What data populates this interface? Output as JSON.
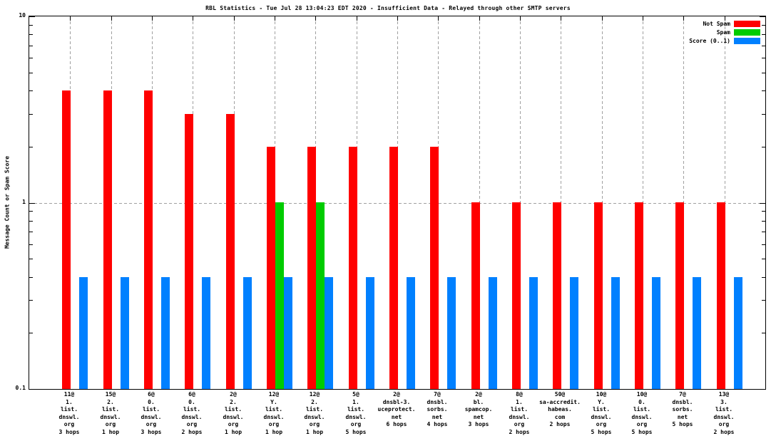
{
  "chart_data": {
    "type": "bar",
    "title": "RBL Statistics - Tue Jul 28 13:04:23 EDT 2020 - Insufficient Data - Relayed through other SMTP servers",
    "ylabel": "Message Count or Spam Score",
    "xlabel": "",
    "y_scale": "log",
    "ylim": [
      0.1,
      10
    ],
    "grid": {
      "horizontal_dashed_at": [
        1
      ],
      "vertical_dashed_at_categories": true
    },
    "legend_position": "top-right",
    "y_major_ticks": [
      {
        "value": 10,
        "label": "10"
      },
      {
        "value": 1,
        "label": "1"
      },
      {
        "value": 0.1,
        "label": "0.1"
      }
    ],
    "y_minor_ticks": [
      0.2,
      0.3,
      0.4,
      0.5,
      0.6,
      0.7,
      0.8,
      0.9,
      2,
      3,
      4,
      5,
      6,
      7,
      8,
      9
    ],
    "categories": [
      [
        "11@",
        "1.",
        "list.",
        "dnswl.",
        "org",
        "3 hops"
      ],
      [
        "15@",
        "2.",
        "list.",
        "dnswl.",
        "org",
        "1 hop"
      ],
      [
        "6@",
        "0.",
        "list.",
        "dnswl.",
        "org",
        "3 hops"
      ],
      [
        "6@",
        "0.",
        "list.",
        "dnswl.",
        "org",
        "2 hops"
      ],
      [
        "2@",
        "2.",
        "list.",
        "dnswl.",
        "org",
        "1 hop"
      ],
      [
        "12@",
        "Y.",
        "list.",
        "dnswl.",
        "org",
        "1 hop"
      ],
      [
        "12@",
        "2.",
        "list.",
        "dnswl.",
        "org",
        "1 hop"
      ],
      [
        "5@",
        "1.",
        "list.",
        "dnswl.",
        "org",
        "5 hops"
      ],
      [
        "2@",
        "dnsbl-3.",
        "uceprotect.",
        "net",
        "6 hops"
      ],
      [
        "7@",
        "dnsbl.",
        "sorbs.",
        "net",
        "4 hops"
      ],
      [
        "2@",
        "bl.",
        "spamcop.",
        "net",
        "3 hops"
      ],
      [
        "8@",
        "1.",
        "list.",
        "dnswl.",
        "org",
        "2 hops"
      ],
      [
        "50@",
        "sa-accredit.",
        "habeas.",
        "com",
        "2 hops"
      ],
      [
        "10@",
        "Y.",
        "list.",
        "dnswl.",
        "org",
        "5 hops"
      ],
      [
        "10@",
        "0.",
        "list.",
        "dnswl.",
        "org",
        "5 hops"
      ],
      [
        "7@",
        "dnsbl.",
        "sorbs.",
        "net",
        "5 hops"
      ],
      [
        "13@",
        "3.",
        "list.",
        "dnswl.",
        "org",
        "2 hops"
      ]
    ],
    "series": [
      {
        "name": "Not Spam",
        "color": "#ff0000",
        "values": [
          4,
          4,
          4,
          3,
          3,
          2,
          2,
          2,
          2,
          2,
          1,
          1,
          1,
          1,
          1,
          1,
          1
        ]
      },
      {
        "name": "Spam",
        "color": "#00cc00",
        "values": [
          0,
          0,
          0,
          0,
          0,
          1,
          1,
          0,
          0,
          0,
          0,
          0,
          0,
          0,
          0,
          0,
          0
        ]
      },
      {
        "name": "Score (0..1)",
        "color": "#0080ff",
        "values": [
          0.4,
          0.4,
          0.4,
          0.4,
          0.4,
          0.4,
          0.4,
          0.4,
          0.4,
          0.4,
          0.4,
          0.4,
          0.4,
          0.4,
          0.4,
          0.4,
          0.4
        ]
      }
    ],
    "colors": {
      "axis": "#000000",
      "grid": "#a0a0a0",
      "background": "#ffffff"
    }
  }
}
